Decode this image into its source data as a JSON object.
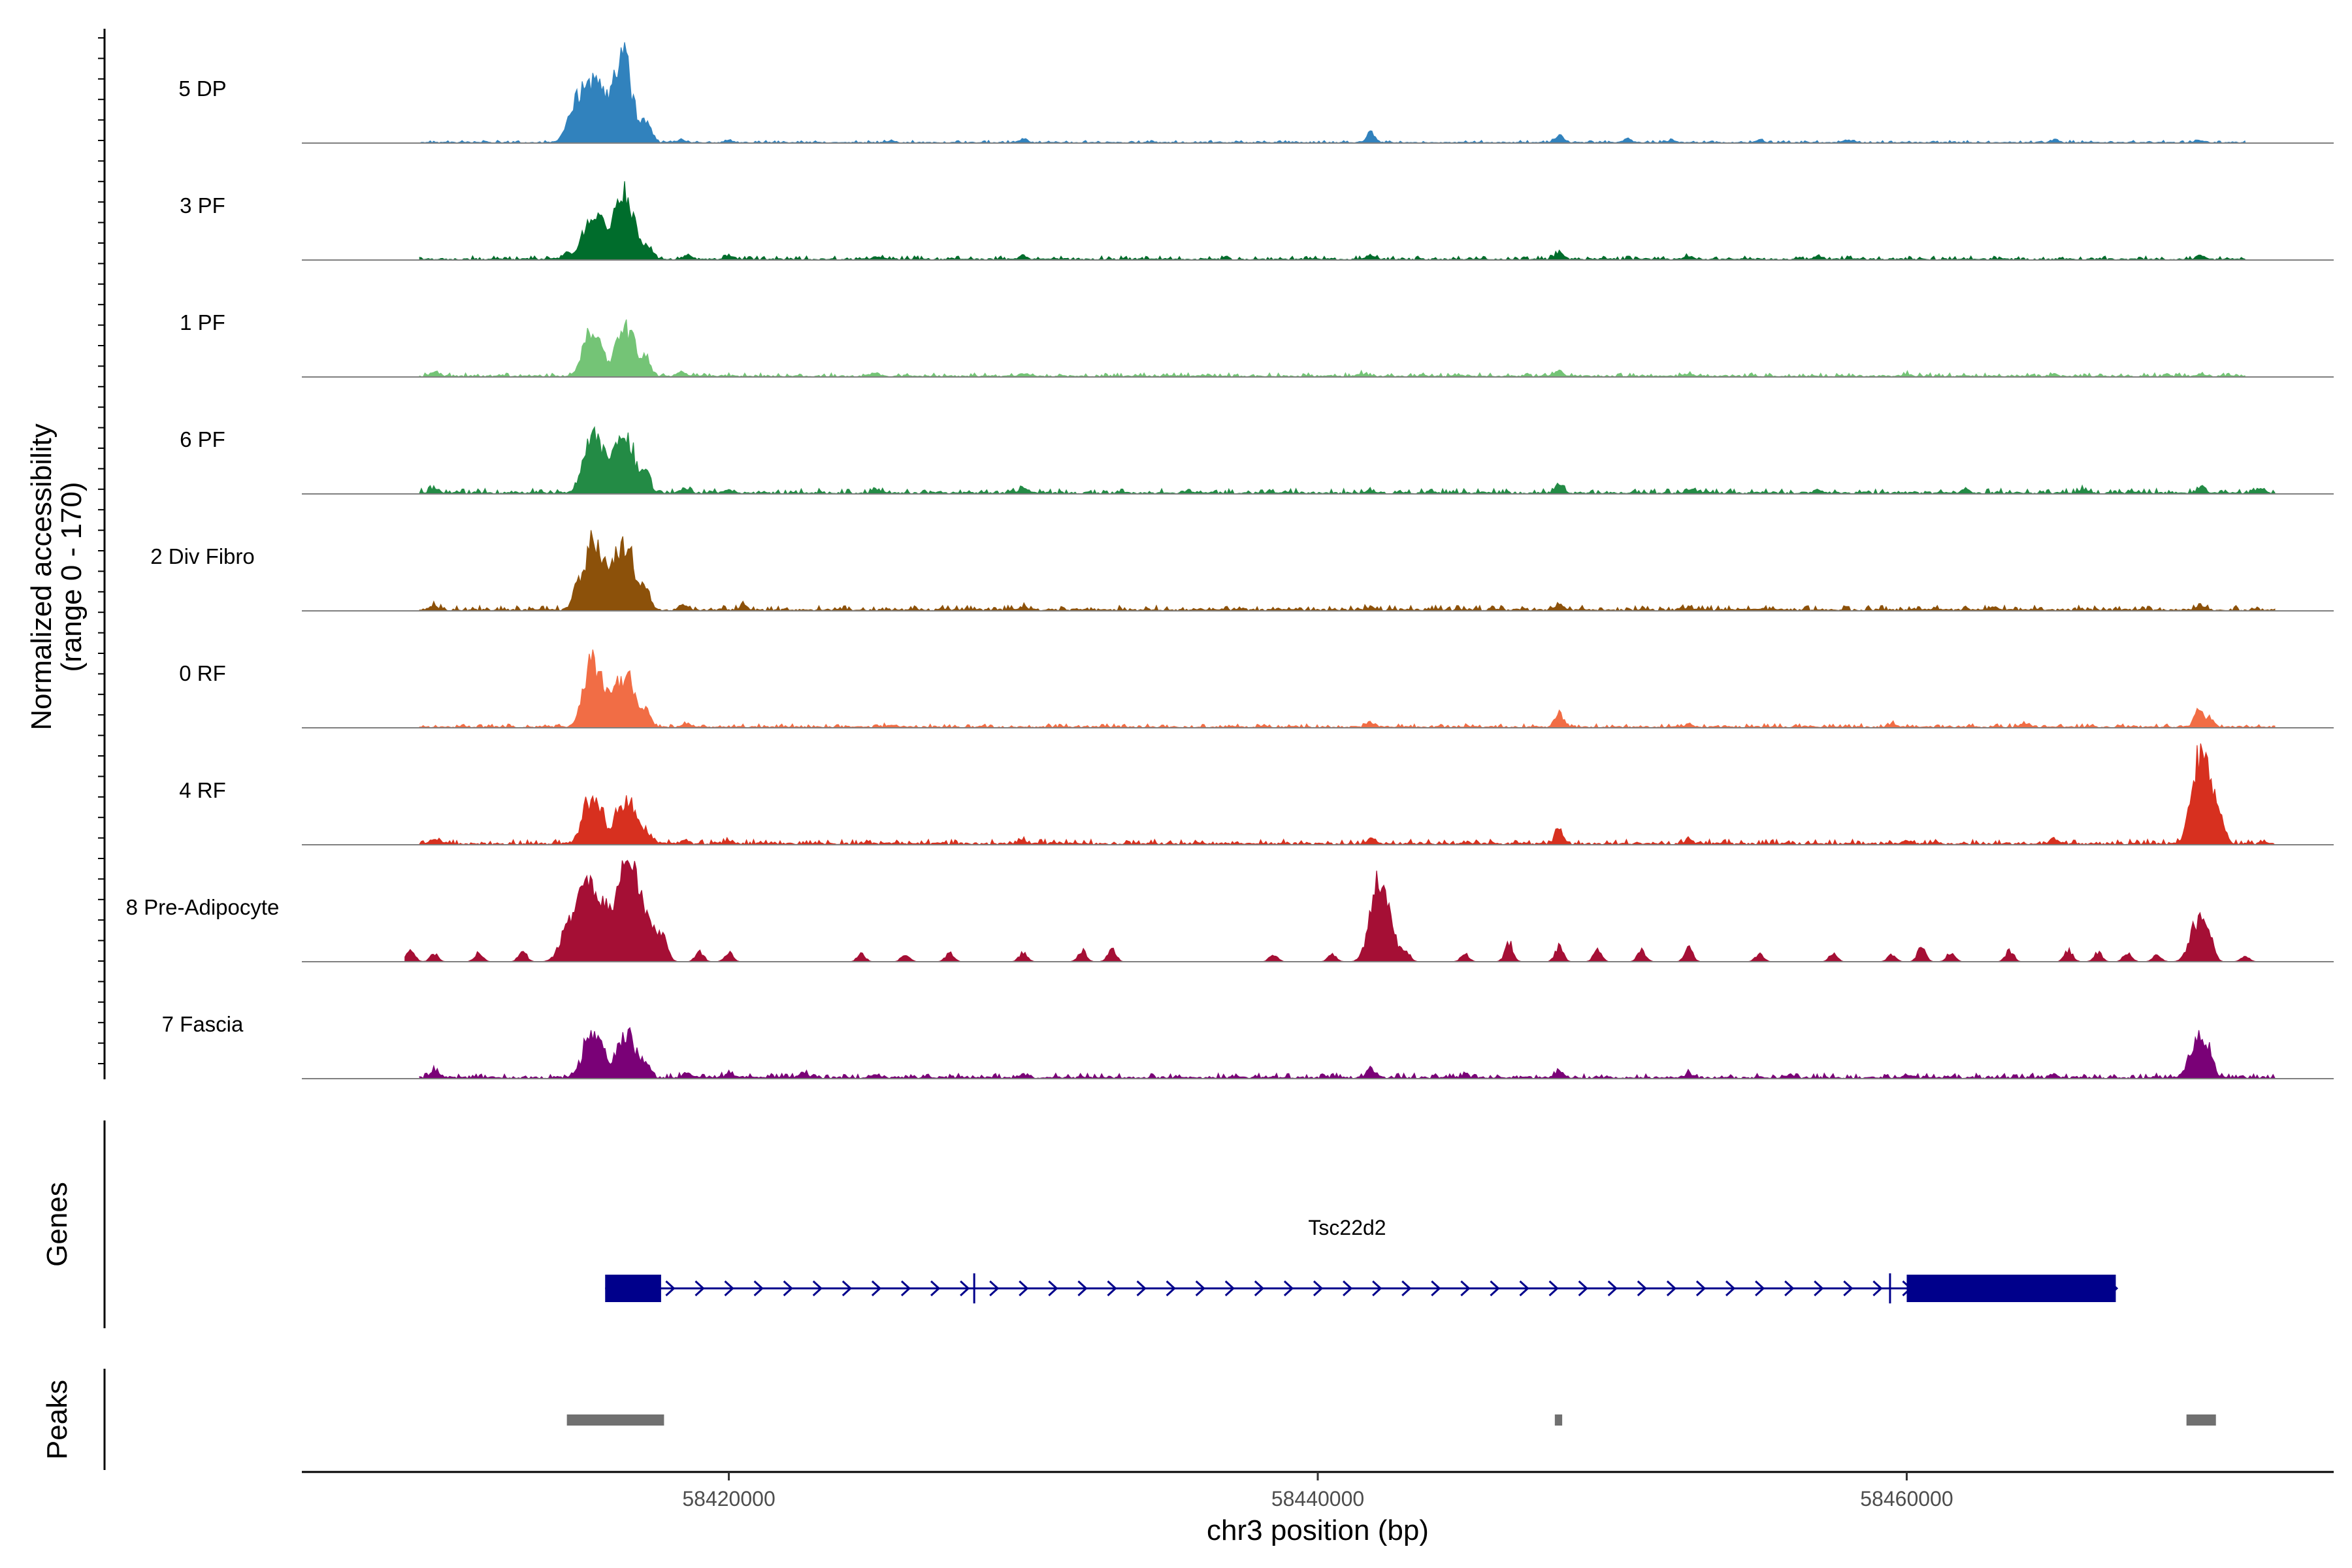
{
  "chart_data": {
    "type": "area",
    "title": "",
    "y_axis_title_line1": "Normalized accessibility",
    "y_axis_title_line2": "(range 0 - 170)",
    "ylim": [
      0,
      170
    ],
    "x_axis_title": "chr3 position (bp)",
    "xlim": [
      58405500,
      58474500
    ],
    "x_ticks": [
      58420000,
      58440000,
      58460000
    ],
    "x_tick_labels": [
      "58420000",
      "58440000",
      "58460000"
    ],
    "tracks": [
      {
        "name": "5 DP",
        "color": "#3182bd",
        "noise": 2,
        "range": [
          58409500,
          58471500
        ],
        "peaks": [
          [
            58414800,
            50
          ],
          [
            58415300,
            65
          ],
          [
            58415700,
            42
          ],
          [
            58416200,
            48
          ],
          [
            58416500,
            85
          ],
          [
            58417100,
            18
          ],
          [
            58417300,
            14
          ],
          [
            58418400,
            4
          ],
          [
            58420000,
            3
          ],
          [
            58425500,
            3
          ],
          [
            58430000,
            5
          ],
          [
            58441800,
            12
          ],
          [
            58448200,
            9
          ],
          [
            58450500,
            4
          ],
          [
            58452000,
            3
          ],
          [
            58455000,
            3
          ],
          [
            58458000,
            3
          ],
          [
            58465000,
            3
          ],
          [
            58470000,
            3
          ]
        ]
      },
      {
        "name": "3 PF",
        "color": "#006d2c",
        "noise": 3,
        "range": [
          58409500,
          58471500
        ],
        "peaks": [
          [
            58414500,
            10
          ],
          [
            58415300,
            55
          ],
          [
            58415700,
            30
          ],
          [
            58416200,
            40
          ],
          [
            58416500,
            70
          ],
          [
            58416900,
            20
          ],
          [
            58417300,
            15
          ],
          [
            58418600,
            5
          ],
          [
            58420000,
            4
          ],
          [
            58425000,
            4
          ],
          [
            58430000,
            4
          ],
          [
            58441800,
            4
          ],
          [
            58448200,
            10
          ],
          [
            58452600,
            4
          ],
          [
            58457000,
            4
          ],
          [
            58470000,
            6
          ]
        ]
      },
      {
        "name": "1 PF",
        "color": "#74c476",
        "noise": 3,
        "range": [
          58409500,
          58471500
        ],
        "peaks": [
          [
            58410000,
            6
          ],
          [
            58415300,
            60
          ],
          [
            58415700,
            25
          ],
          [
            58416200,
            30
          ],
          [
            58416600,
            60
          ],
          [
            58417200,
            22
          ],
          [
            58418400,
            6
          ],
          [
            58425000,
            5
          ],
          [
            58430000,
            4
          ],
          [
            58441500,
            3
          ],
          [
            58448200,
            8
          ],
          [
            58452600,
            3
          ],
          [
            58460000,
            3
          ],
          [
            58465000,
            3
          ],
          [
            58470000,
            3
          ]
        ]
      },
      {
        "name": "6 PF",
        "color": "#238b45",
        "noise": 4,
        "range": [
          58409500,
          58472500
        ],
        "peaks": [
          [
            58410000,
            8
          ],
          [
            58415300,
            60
          ],
          [
            58415700,
            35
          ],
          [
            58416200,
            40
          ],
          [
            58416600,
            60
          ],
          [
            58417200,
            28
          ],
          [
            58418500,
            6
          ],
          [
            58420000,
            5
          ],
          [
            58425000,
            4
          ],
          [
            58430000,
            5
          ],
          [
            58441800,
            4
          ],
          [
            58448200,
            12
          ],
          [
            58452600,
            4
          ],
          [
            58457000,
            4
          ],
          [
            58462000,
            4
          ],
          [
            58466000,
            4
          ],
          [
            58470000,
            6
          ],
          [
            58472000,
            5
          ]
        ]
      },
      {
        "name": "2 Div Fibro",
        "color": "#8c510a",
        "noise": 4,
        "range": [
          58409500,
          58472500
        ],
        "peaks": [
          [
            58410000,
            6
          ],
          [
            58414800,
            20
          ],
          [
            58415300,
            75
          ],
          [
            58415700,
            40
          ],
          [
            58416200,
            45
          ],
          [
            58416600,
            70
          ],
          [
            58417200,
            25
          ],
          [
            58418500,
            6
          ],
          [
            58420500,
            6
          ],
          [
            58430000,
            4
          ],
          [
            58441800,
            4
          ],
          [
            58448200,
            8
          ],
          [
            58452600,
            4
          ],
          [
            58463000,
            4
          ],
          [
            58470000,
            5
          ]
        ]
      },
      {
        "name": "0 RF",
        "color": "#f16d45",
        "noise": 3,
        "range": [
          58409500,
          58472500
        ],
        "peaks": [
          [
            58415300,
            75
          ],
          [
            58415700,
            35
          ],
          [
            58416200,
            35
          ],
          [
            58416600,
            55
          ],
          [
            58417200,
            20
          ],
          [
            58418600,
            5
          ],
          [
            58425500,
            3
          ],
          [
            58441800,
            6
          ],
          [
            58448200,
            18
          ],
          [
            58452600,
            4
          ],
          [
            58459500,
            4
          ],
          [
            58464000,
            4
          ],
          [
            58469900,
            25
          ],
          [
            58470300,
            12
          ]
        ]
      },
      {
        "name": "4 RF",
        "color": "#d7301f",
        "noise": 4,
        "range": [
          58409500,
          58472500
        ],
        "peaks": [
          [
            58410000,
            6
          ],
          [
            58415300,
            60
          ],
          [
            58415700,
            30
          ],
          [
            58416200,
            25
          ],
          [
            58416600,
            55
          ],
          [
            58417200,
            15
          ],
          [
            58418500,
            5
          ],
          [
            58420000,
            4
          ],
          [
            58430000,
            4
          ],
          [
            58441800,
            8
          ],
          [
            58448200,
            20
          ],
          [
            58452600,
            5
          ],
          [
            58460000,
            5
          ],
          [
            58465000,
            5
          ],
          [
            58469900,
            100
          ],
          [
            58470300,
            60
          ],
          [
            58470700,
            15
          ]
        ]
      },
      {
        "name": "8 Pre-Adipocyte",
        "color": "#a50f35",
        "noise": 0,
        "range": [
          58409000,
          58472000
        ],
        "peaks": [
          [
            58409200,
            15
          ],
          [
            58410000,
            10
          ],
          [
            58411500,
            12
          ],
          [
            58413000,
            14
          ],
          [
            58414500,
            40
          ],
          [
            58415000,
            70
          ],
          [
            58415400,
            60
          ],
          [
            58415800,
            45
          ],
          [
            58416200,
            40
          ],
          [
            58416600,
            115
          ],
          [
            58417000,
            45
          ],
          [
            58417400,
            35
          ],
          [
            58417800,
            30
          ],
          [
            58419000,
            14
          ],
          [
            58420000,
            12
          ],
          [
            58424500,
            10
          ],
          [
            58426000,
            10
          ],
          [
            58427500,
            12
          ],
          [
            58430000,
            12
          ],
          [
            58432000,
            15
          ],
          [
            58433000,
            18
          ],
          [
            58438500,
            10
          ],
          [
            58440500,
            10
          ],
          [
            58442000,
            90
          ],
          [
            58442400,
            45
          ],
          [
            58443000,
            12
          ],
          [
            58445000,
            10
          ],
          [
            58446500,
            25
          ],
          [
            58448200,
            20
          ],
          [
            58449500,
            15
          ],
          [
            58451000,
            15
          ],
          [
            58452600,
            18
          ],
          [
            58455000,
            10
          ],
          [
            58457500,
            10
          ],
          [
            58459500,
            10
          ],
          [
            58460500,
            18
          ],
          [
            58461500,
            12
          ],
          [
            58463500,
            15
          ],
          [
            58465500,
            15
          ],
          [
            58466500,
            12
          ],
          [
            58467500,
            12
          ],
          [
            58468500,
            10
          ],
          [
            58469900,
            55
          ],
          [
            58470300,
            25
          ],
          [
            58471500,
            8
          ]
        ]
      },
      {
        "name": "7 Fascia",
        "color": "#7a0177",
        "noise": 4,
        "range": [
          58409500,
          58472500
        ],
        "peaks": [
          [
            58410000,
            8
          ],
          [
            58415300,
            55
          ],
          [
            58415700,
            30
          ],
          [
            58416200,
            25
          ],
          [
            58416600,
            55
          ],
          [
            58417200,
            15
          ],
          [
            58418600,
            6
          ],
          [
            58420000,
            5
          ],
          [
            58422500,
            6
          ],
          [
            58425000,
            4
          ],
          [
            58430000,
            5
          ],
          [
            58441800,
            12
          ],
          [
            58445000,
            4
          ],
          [
            58448200,
            10
          ],
          [
            58452600,
            5
          ],
          [
            58456000,
            4
          ],
          [
            58460000,
            4
          ],
          [
            58465000,
            5
          ],
          [
            58469900,
            55
          ],
          [
            58470300,
            20
          ]
        ]
      }
    ],
    "gene": {
      "name": "Tsc22d2",
      "color": "#00008b",
      "start": 58415800,
      "end": 58467100,
      "strand": "+",
      "exons": [
        [
          58415800,
          58417700
        ],
        [
          58428300,
          58428350
        ],
        [
          58459400,
          58459450
        ],
        [
          58460000,
          58467100
        ]
      ]
    },
    "peaks_track": {
      "color": "#707070",
      "regions": [
        [
          58414500,
          58417800
        ],
        [
          58448050,
          58448300
        ],
        [
          58469500,
          58470500
        ]
      ]
    },
    "panel_labels": {
      "genes": "Genes",
      "peaks": "Peaks"
    }
  }
}
